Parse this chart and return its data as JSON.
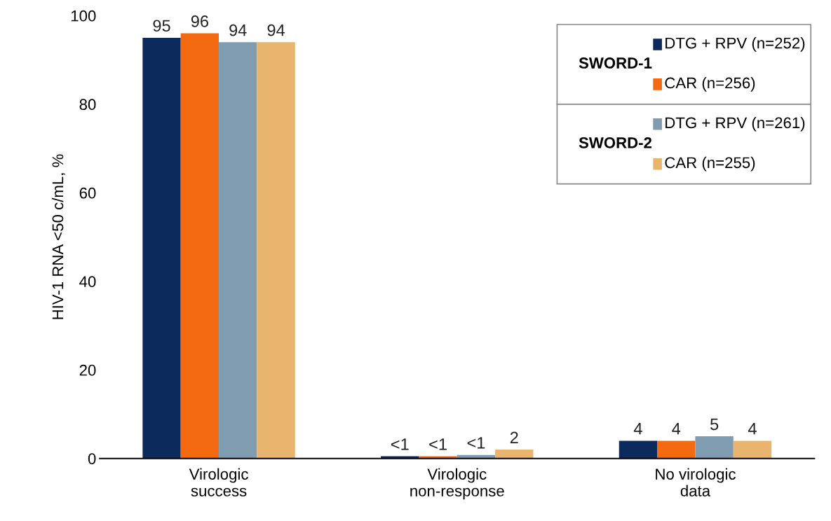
{
  "chart_data": {
    "type": "bar",
    "ylabel": "HIV-1 RNA <50 c/mL, %",
    "categories": [
      "Virologic\nsuccess",
      "Virologic\nnon-response",
      "No virologic\ndata"
    ],
    "series": [
      {
        "name": "DTG + RPV (n=252)",
        "color": "#0d2a5c",
        "values": [
          95,
          0.5,
          4
        ],
        "value_labels": [
          "95",
          "<1",
          "4"
        ]
      },
      {
        "name": "CAR (n=256)",
        "color": "#f36a10",
        "values": [
          96,
          0.5,
          4
        ],
        "value_labels": [
          "96",
          "<1",
          "4"
        ]
      },
      {
        "name": "DTG + RPV (n=261)",
        "color": "#7f9cb0",
        "values": [
          94,
          0.8,
          5
        ],
        "value_labels": [
          "94",
          "<1",
          "5"
        ]
      },
      {
        "name": "CAR (n=255)",
        "color": "#e9b56e",
        "values": [
          94,
          2,
          4
        ],
        "value_labels": [
          "94",
          "2",
          "4"
        ]
      }
    ],
    "annotations": [
      "SWORD-1",
      "SWORD-2"
    ],
    "ylim": [
      0,
      100
    ],
    "yticks": [
      0,
      20,
      40,
      60,
      80,
      100
    ],
    "grid": false,
    "legend": "top right"
  }
}
